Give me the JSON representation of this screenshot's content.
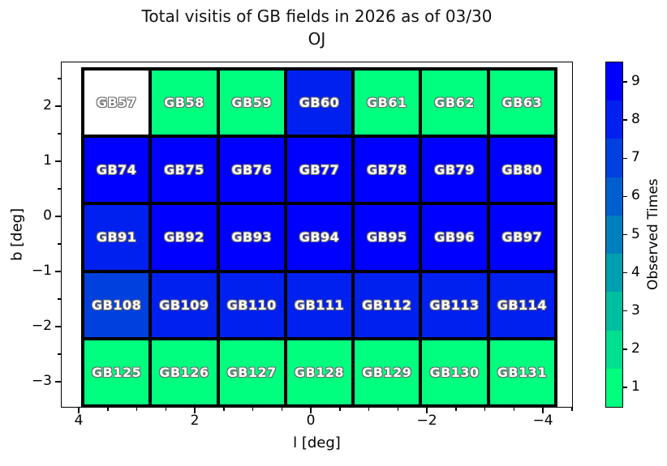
{
  "title": {
    "line1": "Total visitis of GB fields in 2026 as of 03/30",
    "line2": "OJ"
  },
  "axes": {
    "xlabel": "l [deg]",
    "ylabel": "b [deg]"
  },
  "colorbar": {
    "label": "Observed Times"
  },
  "chart_data": {
    "type": "heatmap",
    "title": "Total visitis of GB fields in 2026 as of 03/30 OJ",
    "xlabel": "l [deg]",
    "ylabel": "b [deg]",
    "x_axis": {
      "major_ticks": [
        4,
        2,
        0,
        -2,
        -4
      ],
      "tick_labels": [
        "4",
        "2",
        "0",
        "−2",
        "−4"
      ],
      "minor_ticks": [
        3.5,
        3,
        2.5,
        1.5,
        1,
        0.5,
        -0.5,
        -1,
        -1.5,
        -2.5,
        -3,
        -3.5,
        -4.5
      ],
      "inverted": true,
      "range": [
        4.3,
        -4.5
      ]
    },
    "y_axis": {
      "major_ticks": [
        2,
        1,
        0,
        -1,
        -2,
        -3
      ],
      "tick_labels": [
        "2",
        "1",
        "0",
        "−1",
        "−2",
        "−3"
      ],
      "minor_ticks": [
        2.5,
        1.5,
        0.5,
        -0.5,
        -1.5,
        -2.5
      ],
      "range": [
        -3.45,
        2.8
      ]
    },
    "colorbar": {
      "label": "Observed Times",
      "ticks": [
        1,
        2,
        3,
        4,
        5,
        6,
        7,
        8,
        9
      ],
      "tick_labels": [
        "1",
        "2",
        "3",
        "4",
        "5",
        "6",
        "7",
        "8",
        "9"
      ],
      "colormap": "winter_r",
      "levels": 9
    },
    "level_colors": {
      "0": "#FFFFFF",
      "1": "#00FF7F",
      "2": "#00DF8F",
      "3": "#00BF9F",
      "4": "#009FAF",
      "5": "#007FBF",
      "6": "#005FCF",
      "7": "#0040DF",
      "8": "#0020EF",
      "9": "#0000FF"
    },
    "rows": [
      {
        "labels": [
          "GB57",
          "GB58",
          "GB59",
          "GB60",
          "GB61",
          "GB62",
          "GB63"
        ],
        "values": [
          0,
          1,
          1,
          8,
          1,
          1,
          1
        ]
      },
      {
        "labels": [
          "GB74",
          "GB75",
          "GB76",
          "GB77",
          "GB78",
          "GB79",
          "GB80"
        ],
        "values": [
          9,
          9,
          9,
          9,
          9,
          9,
          9
        ]
      },
      {
        "labels": [
          "GB91",
          "GB92",
          "GB93",
          "GB94",
          "GB95",
          "GB96",
          "GB97"
        ],
        "values": [
          8,
          9,
          9,
          9,
          9,
          9,
          9
        ]
      },
      {
        "labels": [
          "GB108",
          "GB109",
          "GB110",
          "GB111",
          "GB112",
          "GB113",
          "GB114"
        ],
        "values": [
          7,
          8,
          8,
          8,
          8,
          8,
          8
        ]
      },
      {
        "labels": [
          "GB125",
          "GB126",
          "GB127",
          "GB128",
          "GB129",
          "GB130",
          "GB131"
        ],
        "values": [
          1,
          1,
          1,
          1,
          1,
          1,
          1
        ]
      }
    ]
  }
}
